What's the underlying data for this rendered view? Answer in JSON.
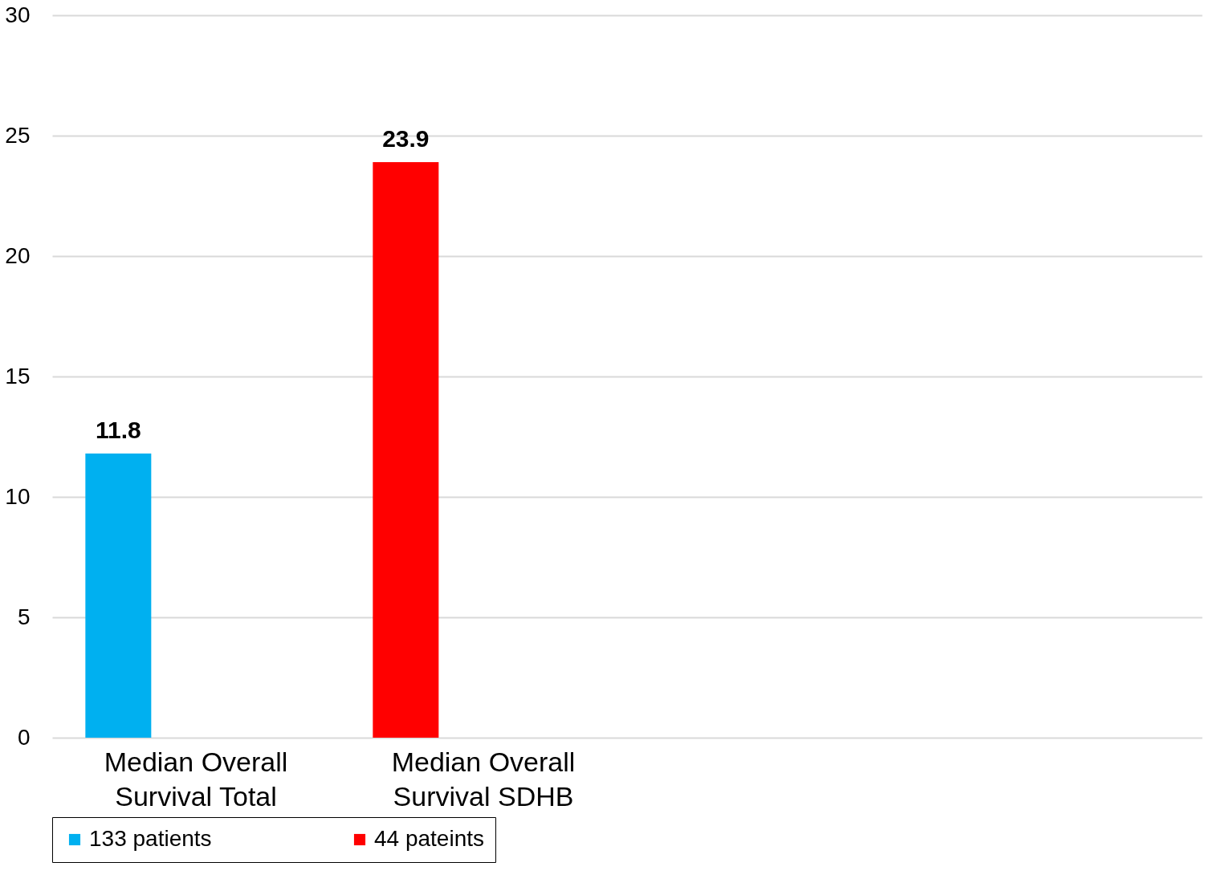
{
  "chart_data": {
    "type": "bar",
    "categories": [
      "Median Overall Survival Total",
      "Median Overall Survival SDHB",
      null,
      null
    ],
    "series": [
      {
        "name": "133 patients",
        "color": "#00b0f0",
        "values": [
          11.8,
          null,
          null,
          null
        ]
      },
      {
        "name": "44 pateints",
        "color": "#ff0000",
        "values": [
          null,
          23.9,
          null,
          null
        ]
      }
    ],
    "ylim": [
      0,
      30
    ],
    "yticks": [
      0,
      5,
      10,
      15,
      20,
      25,
      30
    ],
    "grid": "y",
    "legend": "bottom",
    "data_labels": true
  }
}
